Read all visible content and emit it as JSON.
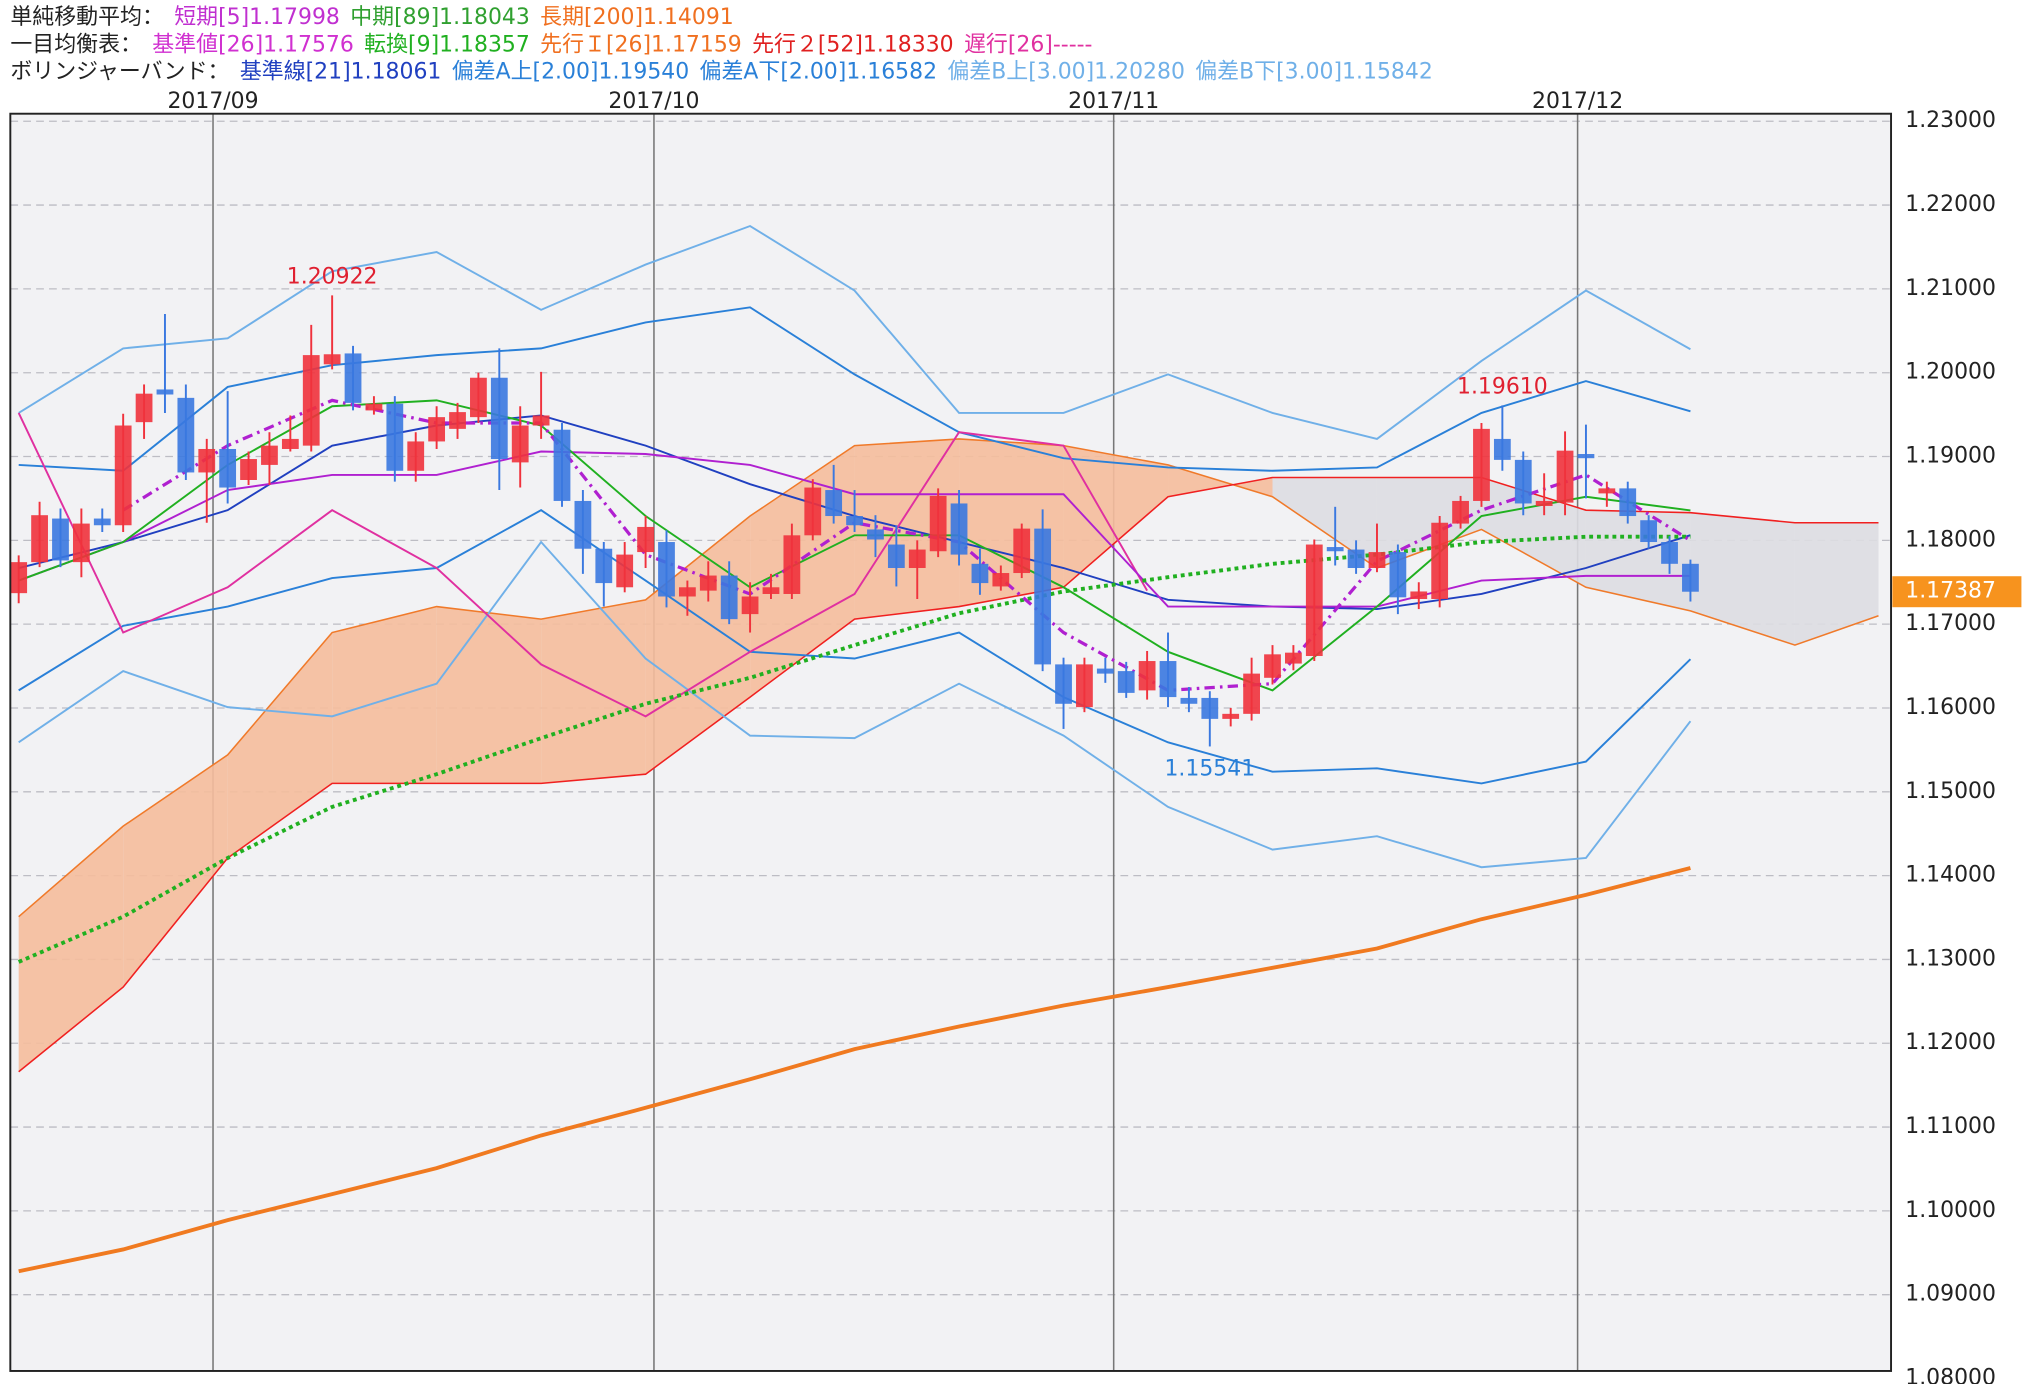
{
  "header": {
    "rows": [
      {
        "title": "単純移動平均：",
        "items": [
          {
            "text": "短期[5]1.17998",
            "color": "#c030d0"
          },
          {
            "text": "中期[89]1.18043",
            "color": "#30a030"
          },
          {
            "text": "長期[200]1.14091",
            "color": "#f07020"
          }
        ]
      },
      {
        "title": "一目均衡表：",
        "items": [
          {
            "text": "基準値[26]1.17576",
            "color": "#d030d0"
          },
          {
            "text": "転換[9]1.18357",
            "color": "#20b020"
          },
          {
            "text": "先行Ｉ[26]1.17159",
            "color": "#f07020"
          },
          {
            "text": "先行２[52]1.18330",
            "color": "#e02020"
          },
          {
            "text": "遅行[26]-----",
            "color": "#e030a0"
          }
        ]
      },
      {
        "title": "ボリンジャーバンド：",
        "items": [
          {
            "text": "基準線[21]1.18061",
            "color": "#2040c0"
          },
          {
            "text": "偏差A上[2.00]1.19540",
            "color": "#2a80d8"
          },
          {
            "text": "偏差A下[2.00]1.16582",
            "color": "#2a80d8"
          },
          {
            "text": "偏差B上[3.00]1.20280",
            "color": "#70b0e8"
          },
          {
            "text": "偏差B下[3.00]1.15842",
            "color": "#70b0e8"
          }
        ]
      }
    ]
  },
  "chart_data": {
    "type": "candlestick",
    "xlim": [
      -0.4,
      89.6
    ],
    "xticks": [
      {
        "value": 9.3,
        "label": "2017/09"
      },
      {
        "value": 30.4,
        "label": "2017/10"
      },
      {
        "value": 52.4,
        "label": "2017/11"
      },
      {
        "value": 74.6,
        "label": "2017/12"
      }
    ],
    "ylim": [
      1.0809,
      1.2309
    ],
    "yticks": [
      {
        "value": 1.23,
        "label": "1.23000"
      },
      {
        "value": 1.22,
        "label": "1.22000"
      },
      {
        "value": 1.21,
        "label": "1.21000"
      },
      {
        "value": 1.2,
        "label": "1.20000"
      },
      {
        "value": 1.19,
        "label": "1.19000"
      },
      {
        "value": 1.18,
        "label": "1.18000"
      },
      {
        "value": 1.17,
        "label": "1.17000"
      },
      {
        "value": 1.16,
        "label": "1.16000"
      },
      {
        "value": 1.15,
        "label": "1.15000"
      },
      {
        "value": 1.14,
        "label": "1.14000"
      },
      {
        "value": 1.13,
        "label": "1.13000"
      },
      {
        "value": 1.12,
        "label": "1.12000"
      },
      {
        "value": 1.11,
        "label": "1.11000"
      },
      {
        "value": 1.1,
        "label": "1.10000"
      },
      {
        "value": 1.09,
        "label": "1.09000"
      },
      {
        "value": 1.08,
        "label": "1.08000"
      }
    ],
    "grid": true,
    "up_color": "#f0323c",
    "down_color": "#3a78e0",
    "candles": {
      "x": [
        0,
        1,
        2,
        3,
        4,
        5,
        6,
        7,
        8,
        9,
        10,
        11,
        12,
        13,
        14,
        15,
        16,
        17,
        18,
        19,
        20,
        21,
        22,
        23,
        24,
        25,
        26,
        27,
        28,
        29,
        30,
        31,
        32,
        33,
        34,
        35,
        36,
        37,
        38,
        39,
        40,
        41,
        42,
        43,
        44,
        45,
        46,
        47,
        48,
        49,
        50,
        51,
        52,
        53,
        54,
        55,
        56,
        57,
        58,
        59,
        60,
        61,
        62,
        63,
        64,
        65,
        66,
        67,
        68,
        69,
        70,
        71,
        72,
        73,
        74,
        75,
        76,
        77,
        78,
        79,
        80
      ],
      "open": [
        1.1737,
        1.1774,
        1.1826,
        1.1774,
        1.1826,
        1.1818,
        1.1941,
        1.198,
        1.197,
        1.1881,
        1.1909,
        1.1872,
        1.189,
        1.1909,
        1.1913,
        1.201,
        1.2023,
        1.1955,
        1.1963,
        1.1883,
        1.1918,
        1.1933,
        1.1947,
        1.1994,
        1.1893,
        1.1937,
        1.1932,
        1.1847,
        1.179,
        1.1744,
        1.1786,
        1.1798,
        1.1733,
        1.174,
        1.1758,
        1.1712,
        1.1736,
        1.1736,
        1.1806,
        1.186,
        1.1829,
        1.1813,
        1.1795,
        1.1767,
        1.1787,
        1.1844,
        1.1772,
        1.1745,
        1.1761,
        1.1814,
        1.1652,
        1.1601,
        1.1647,
        1.1644,
        1.1621,
        1.1656,
        1.1612,
        1.1612,
        1.1587,
        1.1593,
        1.1636,
        1.1653,
        1.1662,
        1.1792,
        1.1789,
        1.1767,
        1.1786,
        1.173,
        1.173,
        1.182,
        1.1847,
        1.1921,
        1.1896,
        1.1841,
        1.1845,
        1.1903,
        1.1856,
        1.1862,
        1.1824,
        1.1798,
        1.1772
      ],
      "high": [
        1.1782,
        1.1846,
        1.1838,
        1.1838,
        1.1838,
        1.1951,
        1.1986,
        1.207,
        1.1986,
        1.1921,
        1.1978,
        1.1906,
        1.1929,
        1.1949,
        1.2057,
        1.20922,
        1.2032,
        1.1972,
        1.1972,
        1.1929,
        1.196,
        1.1964,
        1.2,
        1.2029,
        1.196,
        1.2001,
        1.194,
        1.186,
        1.1798,
        1.1798,
        1.1829,
        1.1812,
        1.1752,
        1.1775,
        1.1775,
        1.175,
        1.176,
        1.182,
        1.1873,
        1.189,
        1.186,
        1.183,
        1.1818,
        1.18,
        1.1862,
        1.186,
        1.179,
        1.177,
        1.182,
        1.1837,
        1.166,
        1.166,
        1.166,
        1.1655,
        1.1668,
        1.169,
        1.1625,
        1.162,
        1.16,
        1.166,
        1.1675,
        1.1675,
        1.1801,
        1.184,
        1.18,
        1.182,
        1.1795,
        1.175,
        1.1829,
        1.1853,
        1.194,
        1.1961,
        1.1906,
        1.188,
        1.193,
        1.1938,
        1.187,
        1.187,
        1.183,
        1.1805,
        1.1777
      ],
      "low": [
        1.1725,
        1.1768,
        1.1768,
        1.1756,
        1.181,
        1.181,
        1.1921,
        1.1952,
        1.1872,
        1.1821,
        1.1844,
        1.1866,
        1.1866,
        1.1906,
        1.1906,
        1.2004,
        1.1955,
        1.195,
        1.187,
        1.187,
        1.1909,
        1.1921,
        1.194,
        1.186,
        1.1863,
        1.1921,
        1.184,
        1.176,
        1.1721,
        1.1738,
        1.1767,
        1.172,
        1.171,
        1.1727,
        1.17,
        1.169,
        1.173,
        1.173,
        1.18,
        1.182,
        1.181,
        1.178,
        1.1745,
        1.173,
        1.178,
        1.177,
        1.1735,
        1.174,
        1.1755,
        1.1644,
        1.1575,
        1.1595,
        1.163,
        1.1612,
        1.161,
        1.1601,
        1.1595,
        1.15541,
        1.1578,
        1.1585,
        1.1628,
        1.1645,
        1.1656,
        1.177,
        1.176,
        1.1762,
        1.1712,
        1.1718,
        1.172,
        1.1814,
        1.184,
        1.1883,
        1.183,
        1.183,
        1.183,
        1.185,
        1.184,
        1.182,
        1.179,
        1.176,
        1.1727
      ],
      "close": [
        1.1774,
        1.183,
        1.1776,
        1.182,
        1.1818,
        1.1937,
        1.1975,
        1.1974,
        1.1881,
        1.1909,
        1.1863,
        1.1897,
        1.1913,
        1.1921,
        1.2021,
        1.2022,
        1.1964,
        1.1963,
        1.1883,
        1.1918,
        1.1947,
        1.1953,
        1.1994,
        1.1897,
        1.1937,
        1.1949,
        1.1847,
        1.179,
        1.1749,
        1.1783,
        1.1816,
        1.1733,
        1.1744,
        1.1758,
        1.1706,
        1.1733,
        1.1744,
        1.1806,
        1.1863,
        1.1829,
        1.1818,
        1.1801,
        1.1767,
        1.1789,
        1.1853,
        1.1783,
        1.1749,
        1.1761,
        1.1814,
        1.1652,
        1.1605,
        1.1652,
        1.1641,
        1.1618,
        1.1656,
        1.1613,
        1.1605,
        1.1587,
        1.1593,
        1.1641,
        1.1664,
        1.1666,
        1.1795,
        1.1787,
        1.1767,
        1.1786,
        1.1732,
        1.1739,
        1.1821,
        1.1847,
        1.1933,
        1.1896,
        1.1844,
        1.1847,
        1.1907,
        1.1898,
        1.1862,
        1.1829,
        1.1798,
        1.1772,
        1.17387
      ]
    },
    "cloud": {
      "x": [
        0,
        5,
        10,
        15,
        20,
        25,
        30,
        35,
        40,
        45,
        50,
        55,
        60,
        65,
        70,
        75,
        80,
        85,
        89
      ],
      "span_a": [
        1.1351,
        1.1459,
        1.1544,
        1.169,
        1.1721,
        1.1706,
        1.1729,
        1.1829,
        1.1913,
        1.1921,
        1.1913,
        1.189,
        1.1852,
        1.1767,
        1.1813,
        1.1744,
        1.17159,
        1.1675,
        1.171
      ],
      "span_b": [
        1.1166,
        1.1267,
        1.1421,
        1.151,
        1.151,
        1.151,
        1.1521,
        1.1613,
        1.1706,
        1.1721,
        1.1744,
        1.1852,
        1.1875,
        1.1875,
        1.1875,
        1.1836,
        1.1833,
        1.1821,
        1.1821
      ],
      "bull_color": "#f5bc9c",
      "bear_color": "#dddde2",
      "span_a_color": "#f07a2a",
      "span_b_color": "#f02020"
    },
    "lines": [
      {
        "color": "#f07a20",
        "width": 3,
        "dash": "",
        "x": [
          0,
          5,
          10,
          15,
          20,
          25,
          30,
          35,
          40,
          45,
          50,
          55,
          60,
          65,
          70,
          75,
          80
        ],
        "values": [
          1.0928,
          1.0954,
          1.0989,
          1.102,
          1.1051,
          1.109,
          1.1123,
          1.1157,
          1.1193,
          1.122,
          1.1245,
          1.1267,
          1.129,
          1.1313,
          1.1348,
          1.1377,
          1.14091
        ]
      },
      {
        "color": "#70b0e8",
        "width": 1.5,
        "dash": "",
        "x": [
          0,
          5,
          10,
          15,
          20,
          25,
          30,
          35,
          40,
          45,
          50,
          55,
          60,
          65,
          70,
          75,
          80
        ],
        "values": [
          1.1952,
          1.2029,
          1.2041,
          1.2121,
          1.2144,
          1.2075,
          1.2129,
          1.2175,
          1.2098,
          1.1952,
          1.1952,
          1.1998,
          1.1952,
          1.1921,
          1.2014,
          1.2098,
          1.2028
        ]
      },
      {
        "color": "#70b0e8",
        "width": 1.5,
        "dash": "",
        "x": [
          0,
          5,
          10,
          15,
          20,
          25,
          30,
          35,
          40,
          45,
          50,
          55,
          60,
          65,
          70,
          75,
          80
        ],
        "values": [
          1.1559,
          1.1644,
          1.1601,
          1.159,
          1.1629,
          1.1798,
          1.1659,
          1.1567,
          1.1564,
          1.1629,
          1.1567,
          1.1482,
          1.1431,
          1.1447,
          1.141,
          1.1421,
          1.15842
        ]
      },
      {
        "color": "#2a80d8",
        "width": 1.5,
        "dash": "",
        "x": [
          0,
          5,
          10,
          15,
          20,
          25,
          30,
          35,
          40,
          45,
          50,
          55,
          60,
          65,
          70,
          75,
          80
        ],
        "values": [
          1.189,
          1.1883,
          1.1983,
          1.2009,
          1.2021,
          1.2029,
          1.206,
          1.2078,
          1.1998,
          1.1929,
          1.1898,
          1.1887,
          1.1883,
          1.1887,
          1.1952,
          1.199,
          1.1954
        ]
      },
      {
        "color": "#2a80d8",
        "width": 1.5,
        "dash": "",
        "x": [
          0,
          5,
          10,
          15,
          20,
          25,
          30,
          35,
          40,
          45,
          50,
          55,
          60,
          65,
          70,
          75,
          80
        ],
        "values": [
          1.1621,
          1.1698,
          1.1721,
          1.1755,
          1.1767,
          1.1836,
          1.1752,
          1.1667,
          1.1659,
          1.169,
          1.1613,
          1.1559,
          1.1524,
          1.1528,
          1.151,
          1.1536,
          1.16582
        ]
      },
      {
        "color": "#2040c0",
        "width": 1.5,
        "dash": "",
        "x": [
          0,
          5,
          10,
          15,
          20,
          25,
          30,
          35,
          40,
          45,
          50,
          55,
          60,
          65,
          70,
          75,
          80
        ],
        "values": [
          1.1767,
          1.1798,
          1.1836,
          1.1913,
          1.1937,
          1.1949,
          1.1913,
          1.1867,
          1.1829,
          1.1798,
          1.1767,
          1.1729,
          1.1721,
          1.1718,
          1.1736,
          1.1767,
          1.18061
        ]
      },
      {
        "color": "#e030a0",
        "width": 1.5,
        "dash": "",
        "x": [
          0,
          5,
          10,
          15,
          20,
          25,
          30,
          35,
          40,
          45,
          50,
          54
        ],
        "values": [
          1.1952,
          1.169,
          1.1744,
          1.1836,
          1.1767,
          1.1652,
          1.159,
          1.1667,
          1.1736,
          1.1929,
          1.1913,
          1.174
        ]
      },
      {
        "color": "#b020d0",
        "width": 1.5,
        "dash": "",
        "x": [
          0,
          5,
          10,
          15,
          20,
          25,
          30,
          35,
          40,
          45,
          50,
          55,
          60,
          65,
          70,
          75,
          80
        ],
        "values": [
          1.1752,
          1.1798,
          1.186,
          1.1878,
          1.1878,
          1.1906,
          1.1903,
          1.189,
          1.1855,
          1.1855,
          1.1855,
          1.1721,
          1.1721,
          1.1721,
          1.1752,
          1.17576,
          1.17576
        ]
      },
      {
        "color": "#20b020",
        "width": 1.5,
        "dash": "",
        "x": [
          0,
          5,
          10,
          15,
          20,
          25,
          30,
          35,
          40,
          45,
          50,
          55,
          60,
          65,
          70,
          75,
          80
        ],
        "values": [
          1.1752,
          1.1798,
          1.189,
          1.196,
          1.1967,
          1.1937,
          1.1829,
          1.1744,
          1.1806,
          1.1806,
          1.1744,
          1.1667,
          1.1621,
          1.1721,
          1.1829,
          1.1852,
          1.18357
        ]
      },
      {
        "color": "#20b020",
        "width": 3,
        "dash": "3 3",
        "x": [
          0,
          5,
          10,
          15,
          20,
          25,
          30,
          35,
          40,
          45,
          50,
          55,
          60,
          65,
          70,
          75,
          80
        ],
        "values": [
          1.1297,
          1.1351,
          1.1421,
          1.1482,
          1.1521,
          1.1564,
          1.1605,
          1.1636,
          1.1675,
          1.1713,
          1.1739,
          1.1756,
          1.1772,
          1.1783,
          1.1798,
          1.18043,
          1.18043
        ]
      },
      {
        "color": "#b020d0",
        "width": 2.5,
        "dash": "8 4 2 4",
        "x": [
          5,
          10,
          15,
          20,
          25,
          30,
          35,
          40,
          45,
          50,
          55,
          60,
          65,
          70,
          75,
          80
        ],
        "values": [
          1.1836,
          1.1913,
          1.1967,
          1.194,
          1.194,
          1.1783,
          1.1736,
          1.1821,
          1.1798,
          1.169,
          1.1621,
          1.1629,
          1.1775,
          1.1836,
          1.1878,
          1.17998
        ]
      }
    ],
    "annotations": [
      {
        "x": 15,
        "y": 1.20922,
        "color": "#e02030"
      },
      {
        "x": 71,
        "y": {
          "value": 1.1961,
          "label": "1.19610"
        },
        "color": "#e02030"
      },
      {
        "x": 57,
        "y": 1.15541,
        "color": "#2a80d8"
      }
    ],
    "last_price": 1.17387,
    "last_price_color": "#f7931e"
  }
}
